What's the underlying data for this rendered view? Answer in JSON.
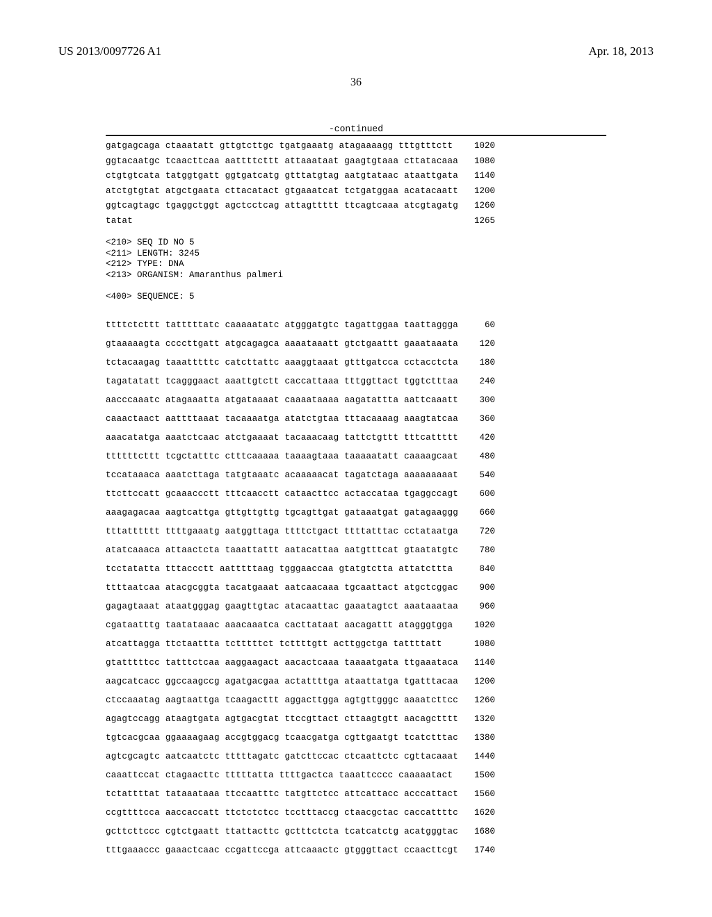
{
  "header": {
    "pub_number": "US 2013/0097726 A1",
    "pub_date": "Apr. 18, 2013"
  },
  "page_number": "36",
  "continued_label": "-continued",
  "seq_block_1": [
    {
      "t": "gatgagcaga ctaaatatt gttgtcttgc tgatgaaatg atagaaaagg tttgtttctt",
      "n": "1020"
    },
    {
      "t": "ggtacaatgc tcaacttcaa aattttcttt attaaataat gaagtgtaaa cttatacaaa",
      "n": "1080"
    },
    {
      "t": "ctgtgtcata tatggtgatt ggtgatcatg gtttatgtag aatgtataac ataattgata",
      "n": "1140"
    },
    {
      "t": "atctgtgtat atgctgaata cttacatact gtgaaatcat tctgatggaa acatacaatt",
      "n": "1200"
    },
    {
      "t": "ggtcagtagc tgaggctggt agctcctcag attagttttt ttcagtcaaa atcgtagatg",
      "n": "1260"
    },
    {
      "t": "tatat",
      "n": "1265"
    }
  ],
  "meta": {
    "seq_id": "<210> SEQ ID NO 5",
    "length": "<211> LENGTH: 3245",
    "type": "<212> TYPE: DNA",
    "organism": "<213> ORGANISM: Amaranthus palmeri",
    "sequence": "<400> SEQUENCE: 5"
  },
  "seq_block_2": [
    {
      "t": "ttttctcttt tatttttatc caaaaatatc atgggatgtc tagattggaa taattaggga",
      "n": "60"
    },
    {
      "t": "gtaaaaagta ccccttgatt atgcagagca aaaataaatt gtctgaattt gaaataaata",
      "n": "120"
    },
    {
      "t": "tctacaagag taaatttttc catcttattc aaaggtaaat gtttgatcca cctacctcta",
      "n": "180"
    },
    {
      "t": "tagatatatt tcagggaact aaattgtctt caccattaaa tttggttact tggtctttaa",
      "n": "240"
    },
    {
      "t": "aacccaaatc atagaaatta atgataaaat caaaataaaa aagatattta aattcaaatt",
      "n": "300"
    },
    {
      "t": "caaactaact aattttaaat tacaaaatga atatctgtaa tttacaaaag aaagtatcaa",
      "n": "360"
    },
    {
      "t": "aaacatatga aaatctcaac atctgaaaat tacaaacaag tattctgttt tttcattttt",
      "n": "420"
    },
    {
      "t": "ttttttcttt tcgctatttc ctttcaaaaa taaaagtaaa taaaaatatt caaaagcaat",
      "n": "480"
    },
    {
      "t": "tccataaaca aaatcttaga tatgtaaatc acaaaaacat tagatctaga aaaaaaaaat",
      "n": "540"
    },
    {
      "t": "ttcttccatt gcaaaccctt tttcaacctt cataacttcc actaccataa tgaggccagt",
      "n": "600"
    },
    {
      "t": "aaagagacaa aagtcattga gttgttgttg tgcagttgat gataaatgat gatagaaggg",
      "n": "660"
    },
    {
      "t": "tttatttttt ttttgaaatg aatggttaga ttttctgact ttttatttac cctataatga",
      "n": "720"
    },
    {
      "t": "atatcaaaca attaactcta taaattattt aatacattaa aatgtttcat gtaatatgtc",
      "n": "780"
    },
    {
      "t": "tcctatatta tttaccctt aatttttaag tgggaaccaa gtatgtctta attatcttta",
      "n": "840"
    },
    {
      "t": "ttttaatcaa atacgcggta tacatgaaat aatcaacaaa tgcaattact atgctcggac",
      "n": "900"
    },
    {
      "t": "gagagtaaat ataatgggag gaagttgtac atacaattac gaaatagtct aaataaataa",
      "n": "960"
    },
    {
      "t": "cgataatttg taatataaac aaacaaatca cacttataat aacagattt atagggtgga",
      "n": "1020"
    },
    {
      "t": "atcattagga ttctaattta tctttttct tcttttgtt acttggctga tattttatt",
      "n": "1080"
    },
    {
      "t": "gtatttttcc tatttctcaa aaggaagact aacactcaaa taaaatgata ttgaaataca",
      "n": "1140"
    },
    {
      "t": "aagcatcacc ggccaagccg agatgacgaa actattttga ataattatga tgatttacaa",
      "n": "1200"
    },
    {
      "t": "ctccaaatag aagtaattga tcaagacttt aggacttgga agtgttgggc aaaatcttcc",
      "n": "1260"
    },
    {
      "t": "agagtccagg ataagtgata agtgacgtat ttccgttact cttaagtgtt aacagctttt",
      "n": "1320"
    },
    {
      "t": "tgtcacgcaa ggaaaagaag accgtggacg tcaacgatga cgttgaatgt tcatctttac",
      "n": "1380"
    },
    {
      "t": "agtcgcagtc aatcaatctc tttttagatc gatcttccac ctcaattctc cgttacaaat",
      "n": "1440"
    },
    {
      "t": "caaattccat ctagaacttc tttttatta ttttgactca taaattcccc caaaaatact",
      "n": "1500"
    },
    {
      "t": "tctattttat tataaataaa ttccaatttc tatgttctcc attcattacc acccattact",
      "n": "1560"
    },
    {
      "t": "ccgttttcca aaccaccatt ttctctctcc tcctttaccg ctaacgctac caccattttc",
      "n": "1620"
    },
    {
      "t": "gcttcttccc cgtctgaatt ttattacttc gctttctcta tcatcatctg acatgggtac",
      "n": "1680"
    },
    {
      "t": "tttgaaaccc gaaactcaac ccgattccga attcaaactc gtgggttact ccaacttcgt",
      "n": "1740"
    }
  ]
}
